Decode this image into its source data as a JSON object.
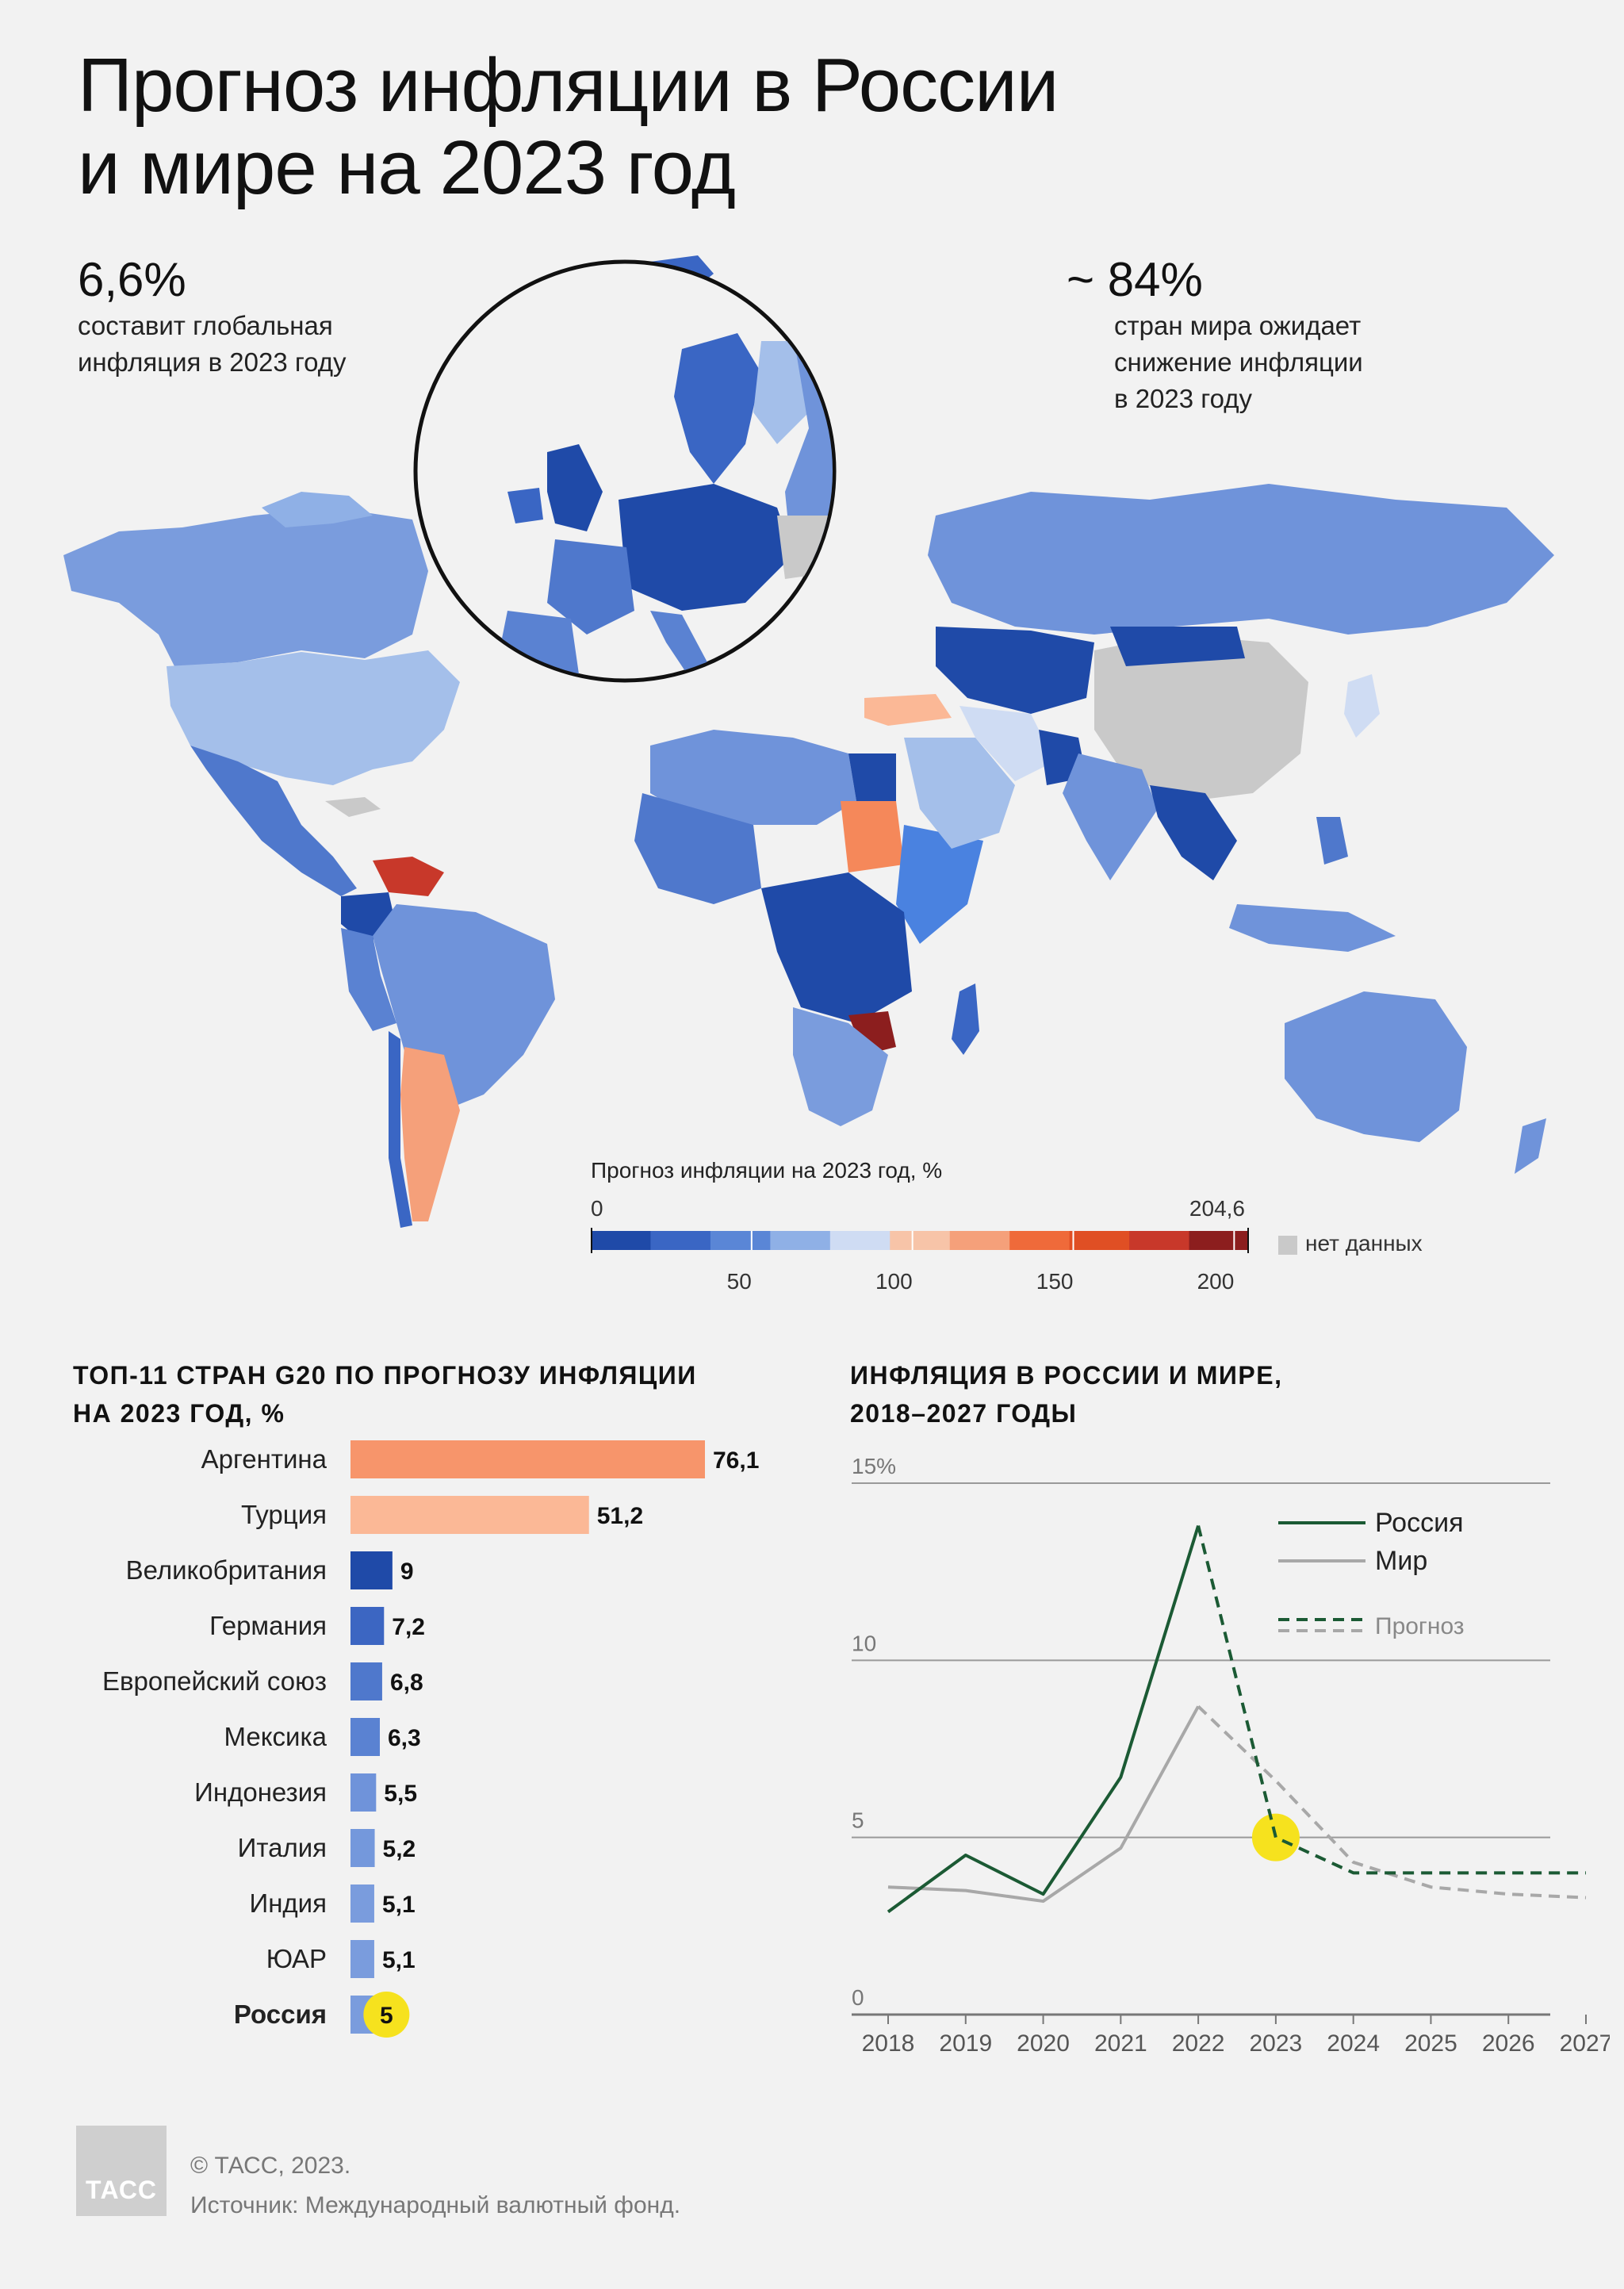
{
  "header": {
    "title_line1": "Прогноз инфляции в России",
    "title_line2": "и мире на 2023 год"
  },
  "stats": {
    "left_value": "6,6%",
    "left_text_line1": "составит глобальная",
    "left_text_line2": "инфляция в 2023 году",
    "right_value": "~ 84%",
    "right_text_line1": "стран мира ожидает",
    "right_text_line2": "снижение инфляции",
    "right_text_line3": "в 2023 году"
  },
  "map_legend": {
    "title": "Прогноз инфляции на 2023 год, %",
    "min_label": "0",
    "max_label": "204,6",
    "ticks": [
      "50",
      "100",
      "150",
      "200"
    ],
    "no_data_label": "нет данных",
    "no_data_color": "#c9c9c9",
    "scale_colors": [
      "#1f4aa8",
      "#3a66c4",
      "#5a86d6",
      "#8fb0e6",
      "#cfdcf3",
      "#f7c4a8",
      "#f5a07a",
      "#ef6a3a",
      "#e04f24",
      "#c8382a",
      "#8c1e1e"
    ],
    "min": 0,
    "max": 204.6
  },
  "chart_data": [
    {
      "type": "bar",
      "title_line1": "ТОП-11 СТРАН G20 ПО ПРОГНОЗУ ИНФЛЯЦИИ",
      "title_line2": "НА 2023 ГОД, %",
      "categories": [
        "Аргентина",
        "Турция",
        "Великобритания",
        "Германия",
        "Европейский союз",
        "Мексика",
        "Индонезия",
        "Италия",
        "Индия",
        "ЮАР",
        "Россия"
      ],
      "values": [
        76.1,
        51.2,
        9,
        7.2,
        6.8,
        6.3,
        5.5,
        5.2,
        5.1,
        5.1,
        5
      ],
      "value_labels": [
        "76,1",
        "51,2",
        "9",
        "7,2",
        "6,8",
        "6,3",
        "5,5",
        "5,2",
        "5,1",
        "5,1",
        "5"
      ],
      "colors": [
        "#f7956b",
        "#fbb896",
        "#1f4aa8",
        "#3c66c2",
        "#4f78cc",
        "#5a82d2",
        "#6f93da",
        "#7498dc",
        "#7a9cdd",
        "#7a9cdd",
        "#7a9cdd"
      ],
      "highlight": "Россия",
      "highlight_color": "#f6e21e"
    },
    {
      "type": "line",
      "title_line1": "ИНФЛЯЦИЯ В РОССИИ И МИРЕ,",
      "title_line2": "2018–2027 ГОДЫ",
      "x": [
        2018,
        2019,
        2020,
        2021,
        2022,
        2023,
        2024,
        2025,
        2026,
        2027
      ],
      "xticks": [
        "2018",
        "2019",
        "2020",
        "2021",
        "2022",
        "2023",
        "2024",
        "2025",
        "2026",
        "2027"
      ],
      "yticks": [
        "0",
        "5",
        "10",
        "15%"
      ],
      "ylim": [
        0,
        15
      ],
      "forecast_from": 2022,
      "series": [
        {
          "name": "Россия",
          "color": "#1b5a34",
          "values": [
            2.9,
            4.5,
            3.4,
            6.7,
            13.8,
            5.0,
            4.0,
            4.0,
            4.0,
            4.0
          ]
        },
        {
          "name": "Мир",
          "color": "#a8a8a8",
          "values": [
            3.6,
            3.5,
            3.2,
            4.7,
            8.7,
            6.6,
            4.3,
            3.6,
            3.4,
            3.3
          ]
        }
      ],
      "forecast_label": "Прогноз",
      "highlight": {
        "x": 2023,
        "y": 5.0,
        "color": "#f6e21e"
      }
    }
  ],
  "footer": {
    "logo_text": "ТАСС",
    "copyright": "© ТАСС, 2023.",
    "source": "Источник: Международный валютный фонд."
  }
}
